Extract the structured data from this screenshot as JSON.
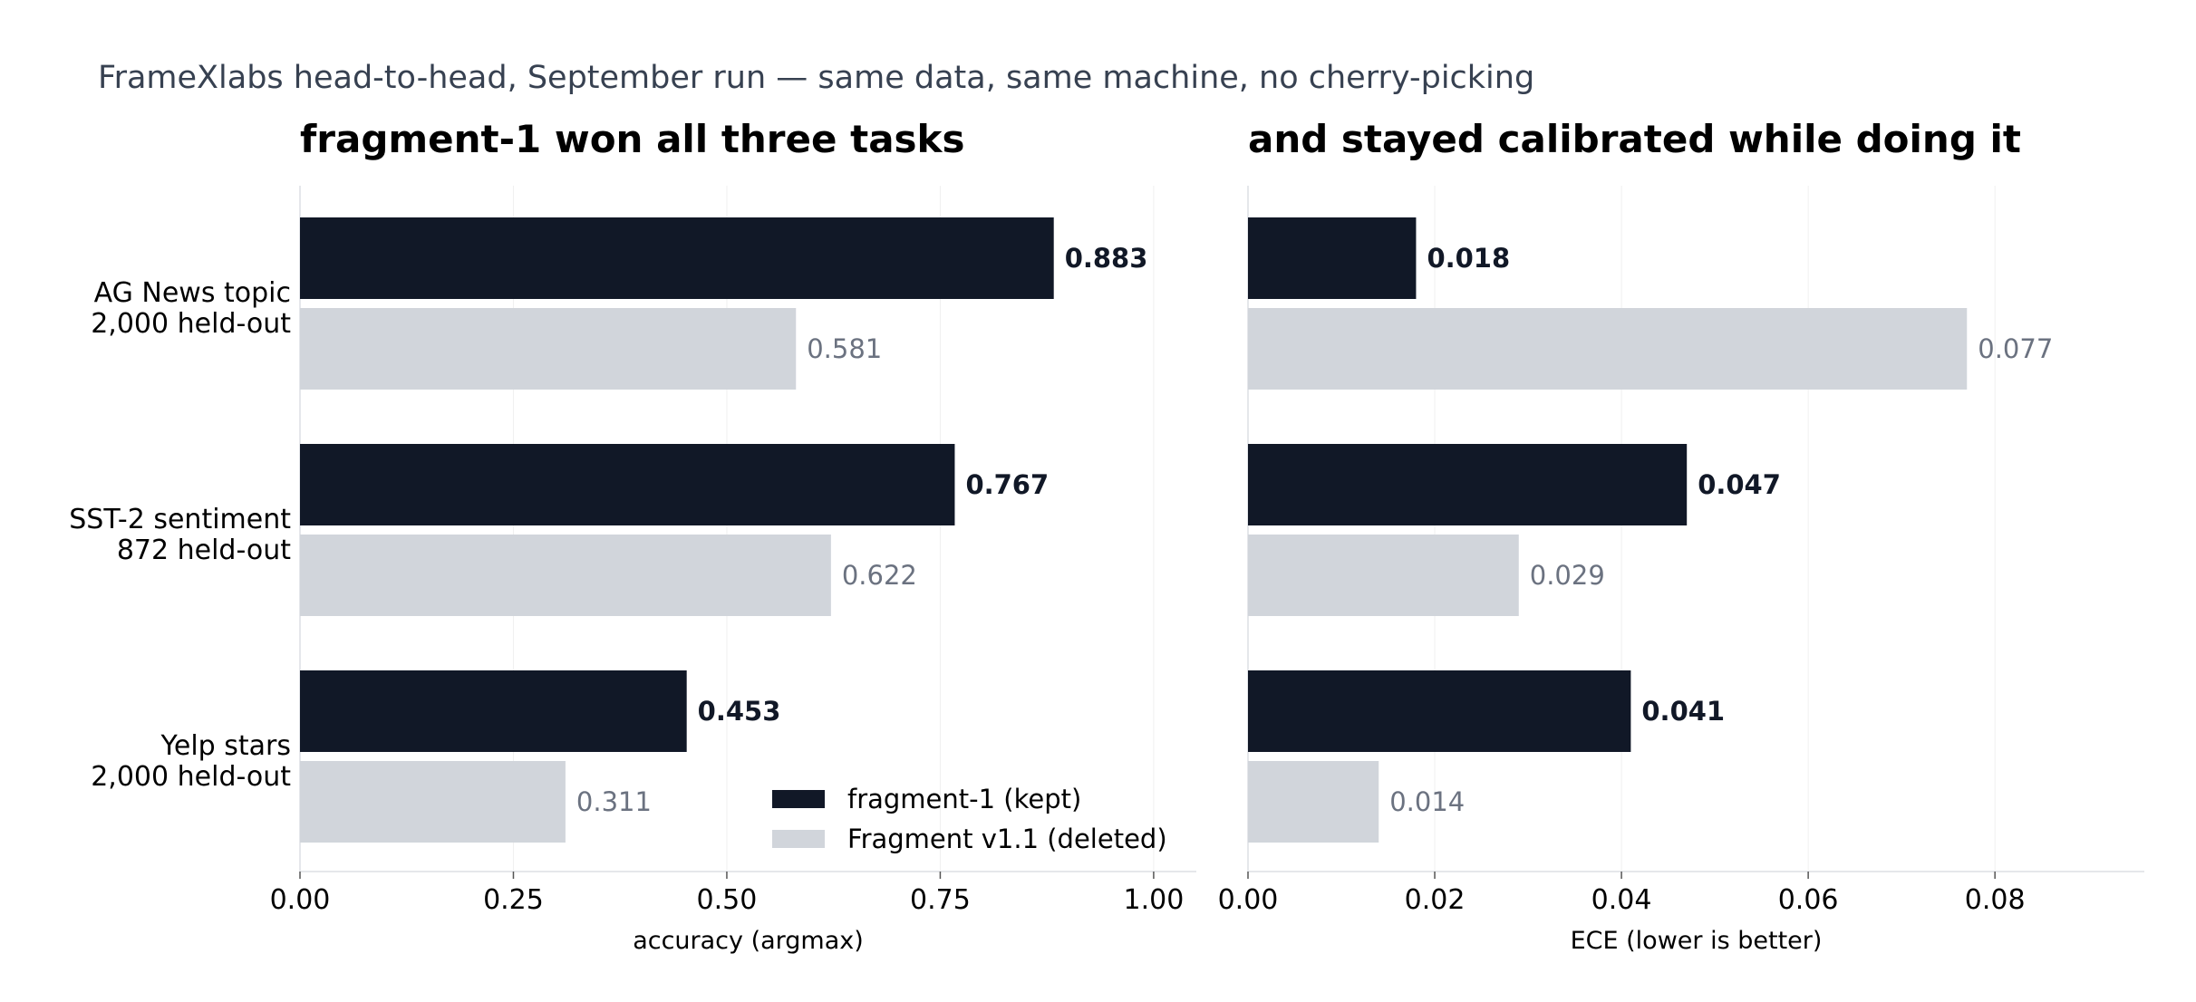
{
  "suptitle": "FrameXlabs head-to-head, September run — same data, same machine, no cherry-picking",
  "colors": {
    "kept": "#111827",
    "deleted": "#d1d5db",
    "deleted_label": "#6b7280",
    "grid": "#f0f0f0"
  },
  "legend": [
    "fragment-1 (kept)",
    "Fragment v1.1 (deleted)"
  ],
  "chart_data": [
    {
      "type": "bar",
      "orientation": "horizontal",
      "title": "fragment-1 won all three tasks",
      "xlabel": "accuracy (argmax)",
      "xlim": [
        0,
        1.05
      ],
      "xticks": [
        "0.00",
        "0.25",
        "0.50",
        "0.75",
        "1.00"
      ],
      "xtick_values": [
        0,
        0.25,
        0.5,
        0.75,
        1.0
      ],
      "grid": "vertical",
      "legend_position": "lower-right",
      "categories": [
        [
          "AG News topic",
          "2,000 held-out"
        ],
        [
          "SST-2 sentiment",
          "872 held-out"
        ],
        [
          "Yelp stars",
          "2,000 held-out"
        ]
      ],
      "series": [
        {
          "name": "fragment-1 (kept)",
          "values": [
            0.883,
            0.767,
            0.453
          ],
          "labels": [
            "0.883",
            "0.767",
            "0.453"
          ]
        },
        {
          "name": "Fragment v1.1 (deleted)",
          "values": [
            0.581,
            0.622,
            0.311
          ],
          "labels": [
            "0.581",
            "0.622",
            "0.311"
          ]
        }
      ]
    },
    {
      "type": "bar",
      "orientation": "horizontal",
      "title": "and stayed calibrated while doing it",
      "xlabel": "ECE (lower is better)",
      "xlim": [
        0,
        0.096
      ],
      "xticks": [
        "0.00",
        "0.02",
        "0.04",
        "0.06",
        "0.08"
      ],
      "xtick_values": [
        0,
        0.02,
        0.04,
        0.06,
        0.08
      ],
      "grid": "vertical",
      "categories": [
        [
          "AG News topic",
          "2,000 held-out"
        ],
        [
          "SST-2 sentiment",
          "872 held-out"
        ],
        [
          "Yelp stars",
          "2,000 held-out"
        ]
      ],
      "series": [
        {
          "name": "fragment-1 (kept)",
          "values": [
            0.018,
            0.047,
            0.041
          ],
          "labels": [
            "0.018",
            "0.047",
            "0.041"
          ]
        },
        {
          "name": "Fragment v1.1 (deleted)",
          "values": [
            0.077,
            0.029,
            0.014
          ],
          "labels": [
            "0.077",
            "0.029",
            "0.014"
          ]
        }
      ]
    }
  ]
}
